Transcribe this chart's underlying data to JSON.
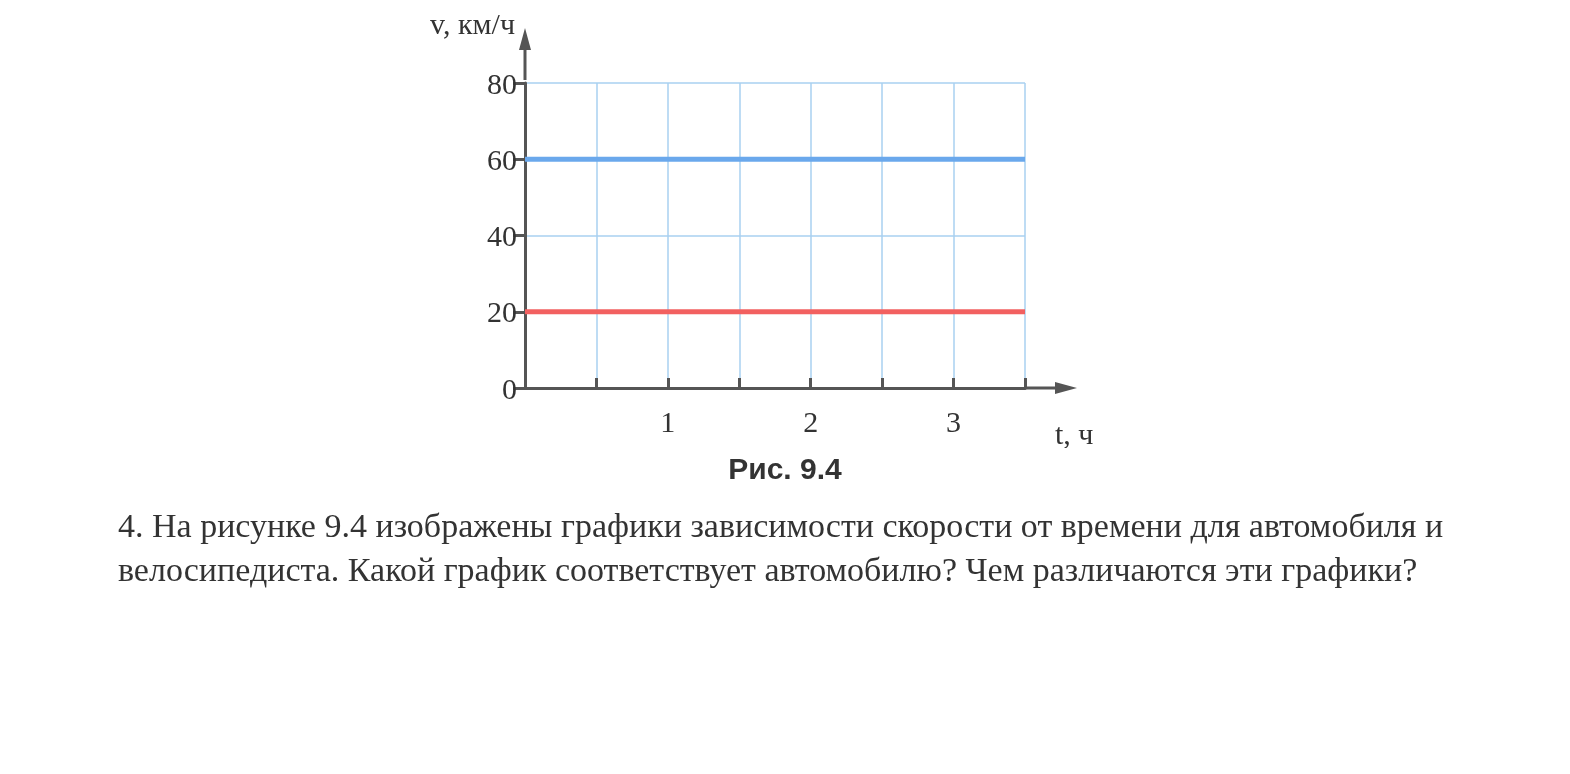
{
  "chart_data": {
    "type": "line",
    "xlabel": "t, ч",
    "ylabel": "v, км/ч",
    "xlim": [
      0,
      3.5
    ],
    "xticks": [
      {
        "value": 0.5,
        "label": null
      },
      1,
      {
        "value": 1.5,
        "label": null
      },
      2,
      {
        "value": 2.5,
        "label": null
      },
      3,
      {
        "value": 3.5,
        "label": null
      }
    ],
    "ylim": [
      0,
      80
    ],
    "yticks": [
      0,
      20,
      40,
      60,
      80
    ],
    "grid": true,
    "marker": "none",
    "line_style": "solid",
    "x": [
      0,
      3.5
    ],
    "series": [
      {
        "color": "#6aa8ec",
        "values": [
          60,
          60
        ]
      },
      {
        "color": "#f26060",
        "values": [
          20,
          20
        ]
      }
    ],
    "annotations": [
      "Рис. 9.4",
      "4. На рисунке 9.4 изображены графики зависимости скорости от времени для автомобиля и велосипедиста. Какой график соответствует автомобилю? Чем различаются эти графики?"
    ]
  }
}
